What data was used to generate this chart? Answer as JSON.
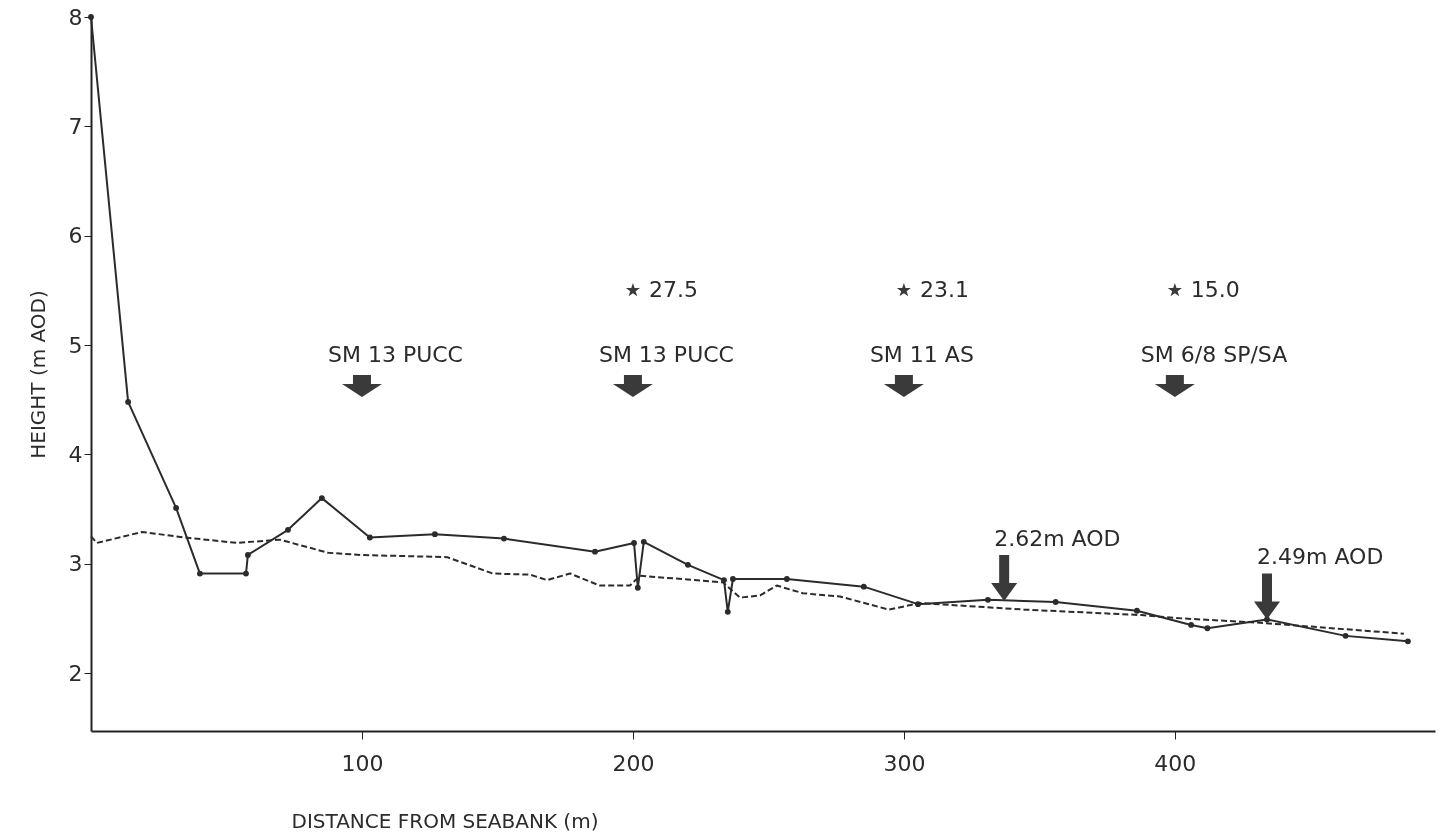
{
  "chart_data": {
    "type": "line",
    "xlabel": "DISTANCE FROM SEABANK (m)",
    "ylabel": "HEIGHT (m AOD)",
    "xlim": [
      0,
      496
    ],
    "xticks": [
      100,
      200,
      300,
      400
    ],
    "ylim": [
      1.47,
      8
    ],
    "yticks": [
      2,
      3,
      4,
      5,
      6,
      7,
      8
    ],
    "grid": false,
    "series": [
      {
        "color": "#2b2b2b",
        "marker": "circle",
        "line_style": "solid",
        "x": [
          0,
          13.7,
          31.4,
          40.2,
          57.2,
          57.9,
          72.7,
          85.2,
          102.9,
          126.9,
          152.4,
          186,
          200.4,
          201.8,
          204,
          220.3,
          233.6,
          235,
          236.9,
          256.8,
          285.2,
          305.2,
          331,
          356,
          386,
          406,
          412,
          434,
          463,
          486
        ],
        "values": [
          8.0,
          4.48,
          3.51,
          2.91,
          2.91,
          3.08,
          3.31,
          3.6,
          3.24,
          3.27,
          3.23,
          3.11,
          3.19,
          2.78,
          3.2,
          2.99,
          2.85,
          2.56,
          2.86,
          2.86,
          2.79,
          2.63,
          2.67,
          2.65,
          2.57,
          2.44,
          2.41,
          2.49,
          2.34,
          2.29
        ]
      },
      {
        "color": "#2b2b2b",
        "marker": "none",
        "line_style": "dashed",
        "x": [
          0,
          2.2,
          18.8,
          34.7,
          53.9,
          69.7,
          87.5,
          99.3,
          131.4,
          148.3,
          162,
          168.3,
          176.8,
          187.8,
          198.9,
          202.6,
          233.2,
          239.5,
          246.9,
          253.1,
          262.7,
          276.4,
          294.5,
          305.9,
          344.6,
          387.8,
          402.6,
          431.4,
          484.5
        ],
        "values": [
          3.25,
          3.19,
          3.29,
          3.24,
          3.19,
          3.22,
          3.1,
          3.08,
          3.06,
          2.91,
          2.9,
          2.85,
          2.91,
          2.8,
          2.8,
          2.89,
          2.83,
          2.69,
          2.71,
          2.8,
          2.73,
          2.7,
          2.58,
          2.64,
          2.58,
          2.53,
          2.5,
          2.46,
          2.36
        ]
      },
      {
        "type": "scatter",
        "color": "#3a3a3a",
        "marker": "star",
        "x": [
          200,
          300,
          400
        ],
        "values": [
          5.5,
          5.5,
          5.5
        ]
      }
    ],
    "annotations": [
      "SM 13 PUCC",
      "SM 13 PUCC",
      "SM 11 AS",
      "SM 6/8 SP/SA",
      {
        "text": "27.5",
        "x": 200,
        "y": 5.5
      },
      {
        "text": "23.1",
        "x": 300,
        "y": 5.5
      },
      {
        "text": "15.0",
        "x": 400,
        "y": 5.5
      },
      {
        "text": "2.62m AOD",
        "x": 337,
        "y": 2.66
      },
      {
        "text": "2.49m AOD",
        "x": 434,
        "y": 2.49
      }
    ]
  }
}
